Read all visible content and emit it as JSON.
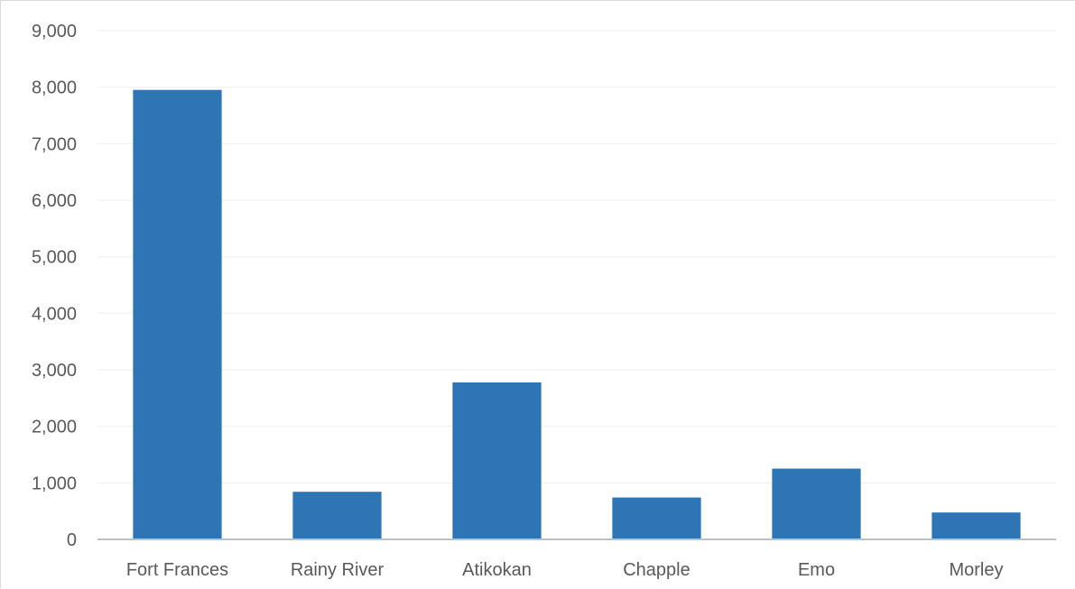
{
  "chart_data": {
    "type": "bar",
    "title": "",
    "xlabel": "",
    "ylabel": "",
    "categories": [
      "Fort Frances",
      "Rainy River",
      "Atikokan",
      "Chapple",
      "Emo",
      "Morley"
    ],
    "values": [
      7952,
      842,
      2777,
      741,
      1252,
      476
    ],
    "ylim": [
      0,
      9000
    ],
    "ytick_step": 1000,
    "yticks": [
      "0",
      "1,000",
      "2,000",
      "3,000",
      "4,000",
      "5,000",
      "6,000",
      "7,000",
      "8,000",
      "9,000"
    ],
    "grid": true,
    "legend": "none",
    "bar_color": "#2e75b6"
  }
}
